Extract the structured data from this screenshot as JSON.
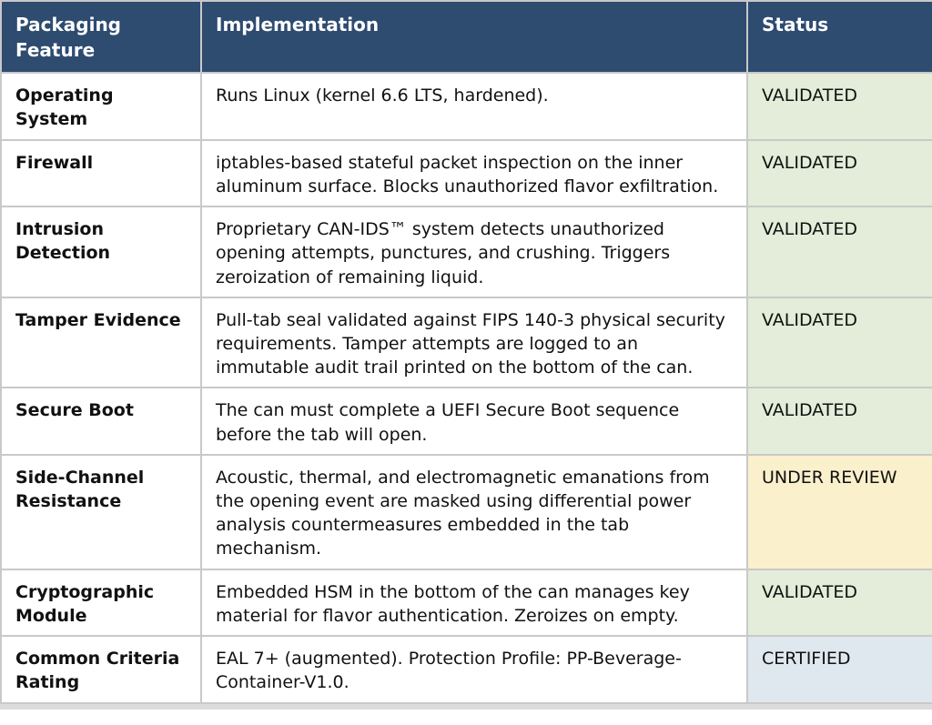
{
  "theme": {
    "header_bg": "#2e4b70",
    "header_text": "#ffffff",
    "border_color": "#c9c9c9"
  },
  "table": {
    "columns": [
      "Packaging Feature",
      "Implementation",
      "Status"
    ],
    "status_colors": {
      "VALIDATED": "#e3edda",
      "UNDER REVIEW": "#faf0cc",
      "CERTIFIED": "#dfe7ef"
    },
    "rows": [
      {
        "feature": "Operating System",
        "implementation": "Runs Linux (kernel 6.6 LTS, hardened).",
        "status": "VALIDATED"
      },
      {
        "feature": "Firewall",
        "implementation": "iptables-based stateful packet inspection on the inner aluminum surface. Blocks unauthorized flavor exfiltration.",
        "status": "VALIDATED"
      },
      {
        "feature": "Intrusion Detection",
        "implementation": "Proprietary CAN-IDS™ system detects unauthorized opening attempts, punctures, and crushing. Triggers zeroization of remaining liquid.",
        "status": "VALIDATED"
      },
      {
        "feature": "Tamper Evidence",
        "implementation": "Pull-tab seal validated against FIPS 140-3 physical security requirements. Tamper attempts are logged to an immutable audit trail printed on the bottom of the can.",
        "status": "VALIDATED"
      },
      {
        "feature": "Secure Boot",
        "implementation": "The can must complete a UEFI Secure Boot sequence before the tab will open.",
        "status": "VALIDATED"
      },
      {
        "feature": "Side-Channel Resistance",
        "implementation": "Acoustic, thermal, and electromagnetic emanations from the opening event are masked using differential power analysis countermeasures embedded in the tab mechanism.",
        "status": "UNDER REVIEW"
      },
      {
        "feature": "Cryptographic Module",
        "implementation": "Embedded HSM in the bottom of the can manages key material for flavor authentication. Zeroizes on empty.",
        "status": "VALIDATED"
      },
      {
        "feature": "Common Criteria Rating",
        "implementation": "EAL 7+ (augmented). Protection Profile: PP-Beverage-Container-V1.0.",
        "status": "CERTIFIED"
      }
    ]
  }
}
